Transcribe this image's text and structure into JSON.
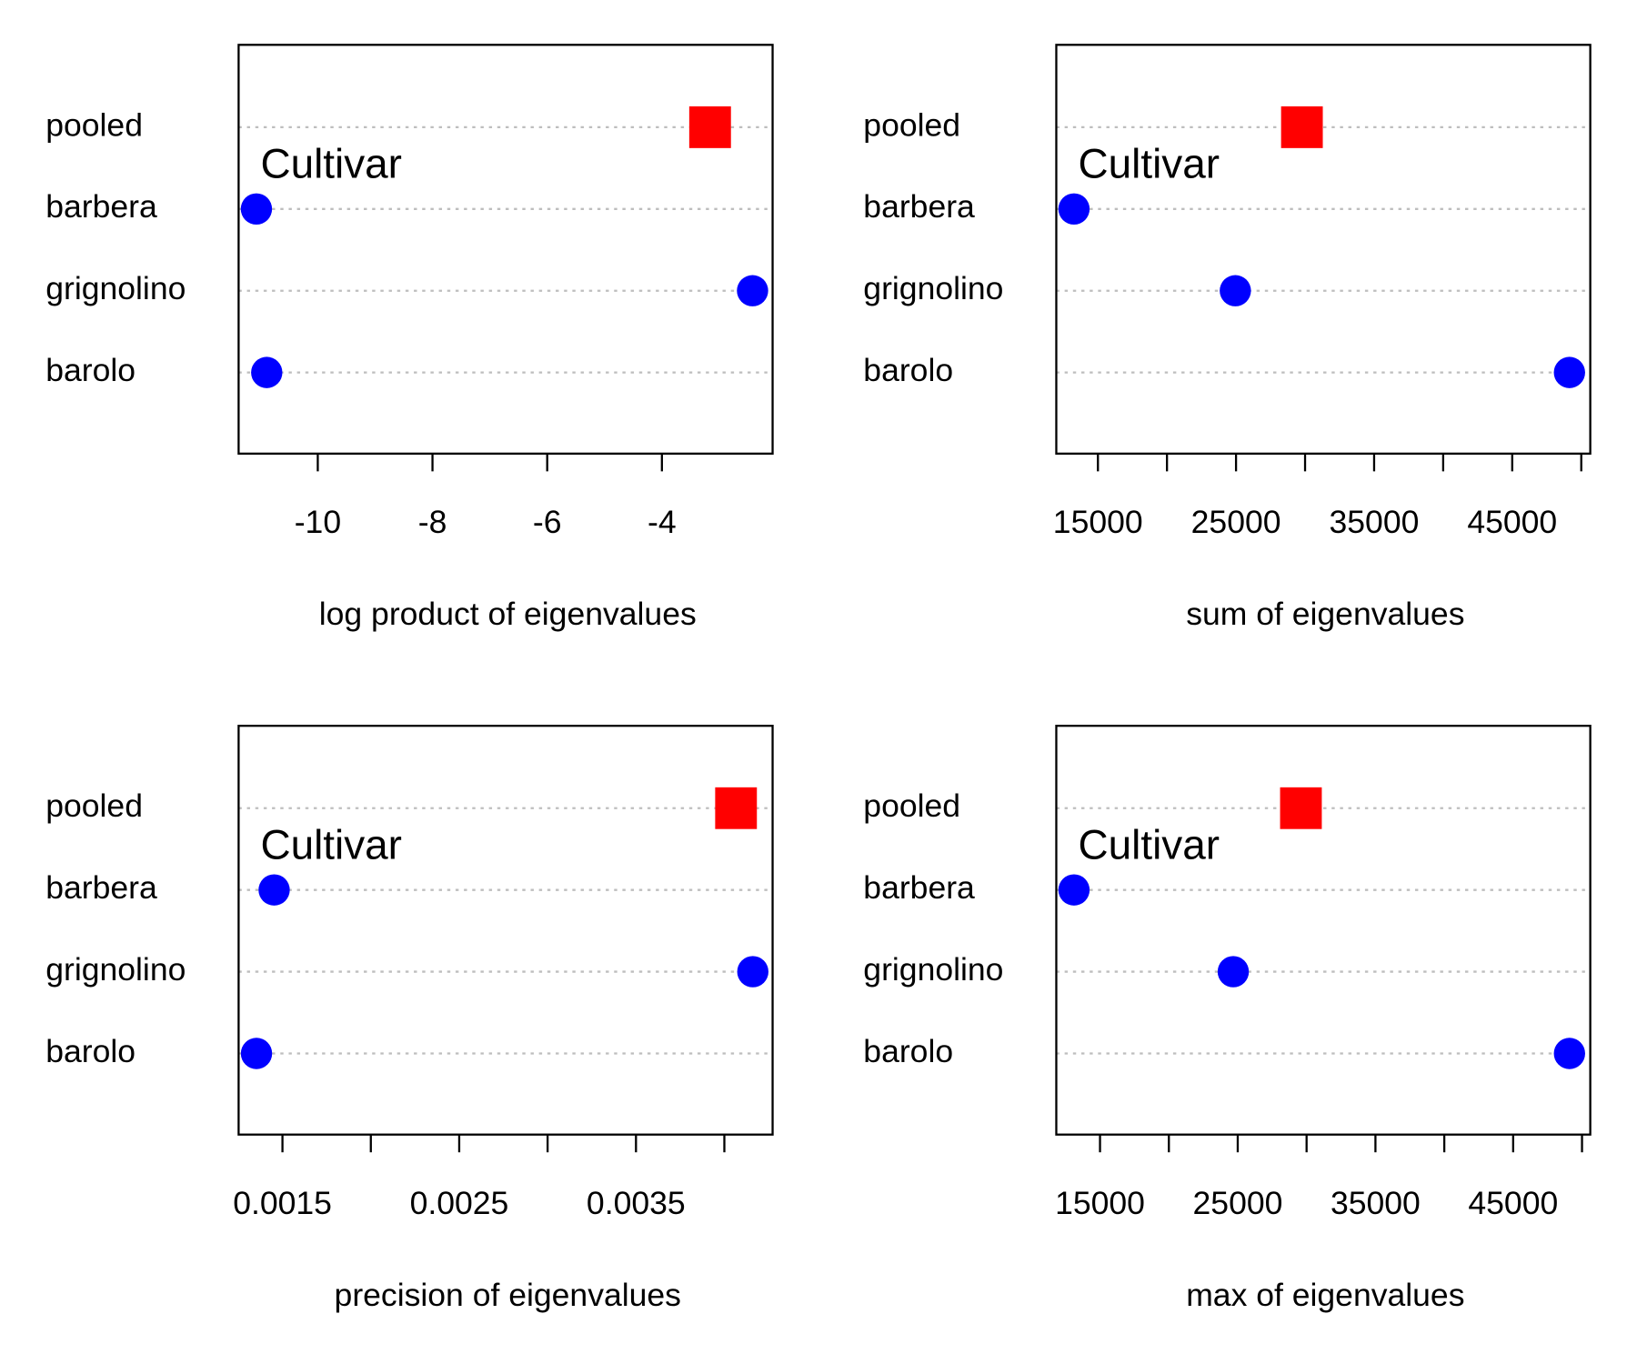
{
  "chart_data": [
    {
      "type": "dot",
      "annotation": "Cultivar",
      "xlabel": "log product of eigenvalues",
      "categories": [
        "pooled",
        "barbera",
        "grignolino",
        "barolo"
      ],
      "values": [
        -3.16,
        -11.07,
        -2.42,
        -10.89
      ],
      "colors": [
        "#ff0000",
        "#0000ff",
        "#0000ff",
        "#0000ff"
      ],
      "markers": [
        "square",
        "circle",
        "circle",
        "circle"
      ],
      "xlim": [
        -11.38,
        -2.07
      ],
      "xticks": [
        -10,
        -8,
        -6,
        -4
      ],
      "grid": true
    },
    {
      "type": "dot",
      "annotation": "Cultivar",
      "xlabel": "sum of eigenvalues",
      "categories": [
        "pooled",
        "barbera",
        "grignolino",
        "barolo"
      ],
      "values": [
        29773,
        13266,
        24950,
        49145
      ],
      "colors": [
        "#ff0000",
        "#0000ff",
        "#0000ff",
        "#0000ff"
      ],
      "markers": [
        "square",
        "circle",
        "circle",
        "circle"
      ],
      "xlim": [
        11985,
        50652
      ],
      "xticks": [
        15000,
        25000,
        35000,
        45000
      ],
      "xticks_unlabeled": [
        20000,
        30000,
        40000,
        50000
      ],
      "grid": true
    },
    {
      "type": "dot",
      "annotation": "Cultivar",
      "xlabel": "precision of eigenvalues",
      "categories": [
        "pooled",
        "barbera",
        "grignolino",
        "barolo"
      ],
      "values": [
        0.004066,
        0.001453,
        0.004161,
        0.001353
      ],
      "colors": [
        "#ff0000",
        "#0000ff",
        "#0000ff",
        "#0000ff"
      ],
      "markers": [
        "square",
        "circle",
        "circle",
        "circle"
      ],
      "xlim": [
        0.001252,
        0.004273
      ],
      "xticks": [
        0.0015,
        0.0025,
        0.0035
      ],
      "xticks_unlabeled": [
        0.002,
        0.003,
        0.004
      ],
      "grid": true
    },
    {
      "type": "dot",
      "annotation": "Cultivar",
      "xlabel": "max of eigenvalues",
      "categories": [
        "pooled",
        "barbera",
        "grignolino",
        "barolo"
      ],
      "values": [
        29590,
        13110,
        24675,
        49090
      ],
      "colors": [
        "#ff0000",
        "#0000ff",
        "#0000ff",
        "#0000ff"
      ],
      "markers": [
        "square",
        "circle",
        "circle",
        "circle"
      ],
      "xlim": [
        11825,
        50600
      ],
      "xticks": [
        15000,
        25000,
        35000,
        45000
      ],
      "xticks_unlabeled": [
        20000,
        30000,
        40000,
        50000
      ],
      "grid": true
    }
  ]
}
